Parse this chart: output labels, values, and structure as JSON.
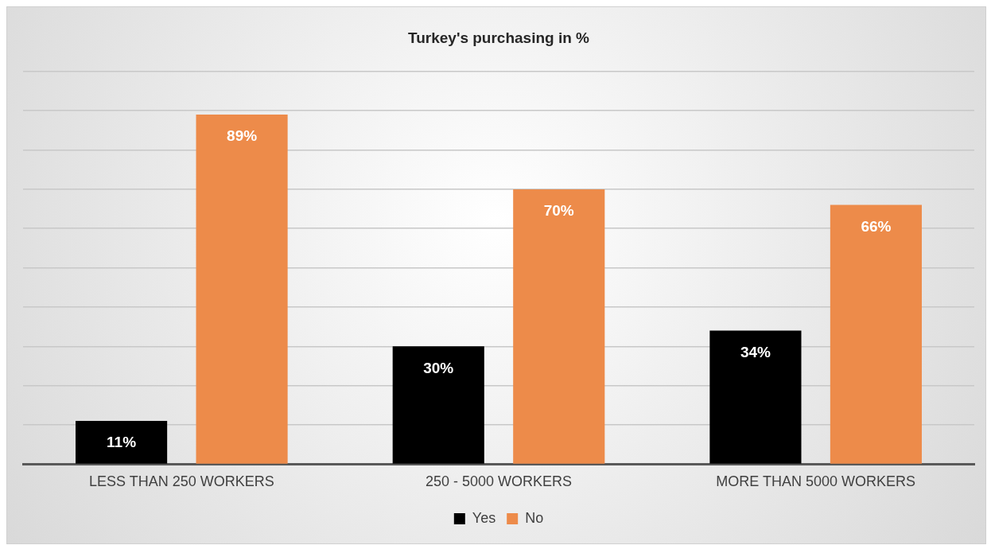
{
  "chart_data": {
    "type": "bar",
    "title": "Turkey's purchasing in %",
    "categories": [
      "LESS THAN 250 WORKERS",
      "250 - 5000 WORKERS",
      "MORE THAN 5000 WORKERS"
    ],
    "series": [
      {
        "name": "Yes",
        "color": "#000000",
        "values": [
          11,
          30,
          34
        ],
        "value_labels": [
          "11%",
          "30%",
          "34%"
        ]
      },
      {
        "name": "No",
        "color": "#ed8b4a",
        "values": [
          89,
          70,
          66
        ],
        "value_labels": [
          "89%",
          "70%",
          "66%"
        ]
      }
    ],
    "ylim": [
      0,
      100
    ],
    "yticks": [
      {
        "value": 0,
        "label": null
      },
      {
        "value": 10,
        "label": null
      },
      {
        "value": 20,
        "label": null
      },
      {
        "value": 30,
        "label": null
      },
      {
        "value": 40,
        "label": null
      },
      {
        "value": 50,
        "label": null
      },
      {
        "value": 60,
        "label": null
      },
      {
        "value": 70,
        "label": null
      },
      {
        "value": 80,
        "label": null
      },
      {
        "value": 90,
        "label": null
      },
      {
        "value": 100,
        "label": null
      }
    ],
    "grid": "y",
    "tick_labels": "x",
    "legend": "bottom"
  }
}
